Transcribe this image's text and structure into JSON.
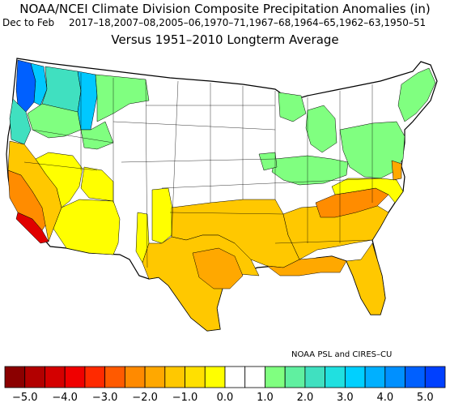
{
  "header": {
    "title": "NOAA/NCEI Climate Division Composite Precipitation Anomalies (in)",
    "season": "Dec to Feb",
    "years": "2017–18,2007–08,2005–06,1970–71,1967–68,1964–65,1962–63,1950–51",
    "subtitle": "Versus 1951–2010 Longterm Average"
  },
  "credit": "NOAA PSL and CIRES–CU",
  "legend": {
    "colors": [
      "#8b0000",
      "#b20000",
      "#d40000",
      "#f00000",
      "#ff2a00",
      "#ff5a00",
      "#ff8a00",
      "#ffa800",
      "#ffc800",
      "#ffe000",
      "#ffff00",
      "#ffffff",
      "#ffffff",
      "#80ff80",
      "#60f0a0",
      "#40e0c0",
      "#20e0e0",
      "#00d0ff",
      "#00b0ff",
      "#0090ff",
      "#0060ff",
      "#0040ff"
    ],
    "tick_labels": [
      "−5.0",
      "−4.0",
      "−3.0",
      "−2.0",
      "−1.0",
      "0.0",
      "1.0",
      "2.0",
      "3.0",
      "4.0",
      "5.0"
    ]
  },
  "map": {
    "region": "Contiguous United States climate divisions",
    "anomaly_colors": {
      "dry_strong": "#e00000",
      "dry_moderate": "#ff8c00",
      "dry_light": "#ffc800",
      "dry_slight": "#ffff00",
      "wet_slight": "#80ff80",
      "wet_moderate": "#40e0c0",
      "wet_strong": "#00c8ff",
      "wet_heavy": "#0060ff"
    }
  }
}
